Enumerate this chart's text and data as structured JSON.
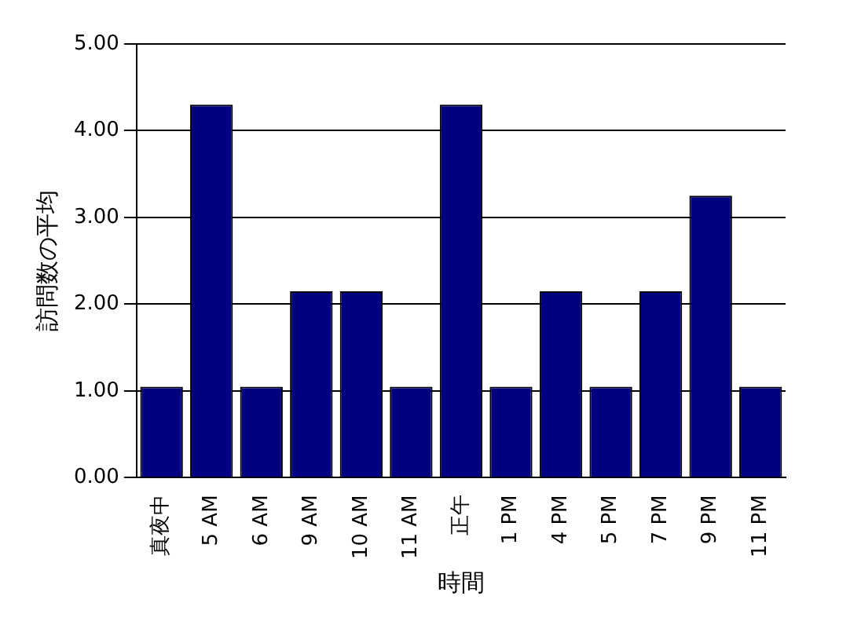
{
  "chart_data": {
    "type": "bar",
    "xlabel": "時間",
    "ylabel": "訪問数の平均",
    "categories": [
      "真夜中",
      "5 AM",
      "6 AM",
      "9 AM",
      "10 AM",
      "11 AM",
      "正午",
      "1 PM",
      "4 PM",
      "5 PM",
      "7 PM",
      "9 PM",
      "11 PM"
    ],
    "values": [
      1.05,
      4.3,
      1.05,
      2.15,
      2.15,
      1.05,
      4.3,
      1.05,
      2.15,
      1.05,
      2.15,
      3.25,
      1.05
    ],
    "color": "#000080",
    "ylim": [
      0,
      5
    ],
    "yticks": [
      {
        "value": 0,
        "label": "0.00"
      },
      {
        "value": 1,
        "label": "1.00"
      },
      {
        "value": 2,
        "label": "2.00"
      },
      {
        "value": 3,
        "label": "3.00"
      },
      {
        "value": 4,
        "label": "4.00"
      },
      {
        "value": 5,
        "label": "5.00"
      }
    ],
    "grid": "y"
  }
}
